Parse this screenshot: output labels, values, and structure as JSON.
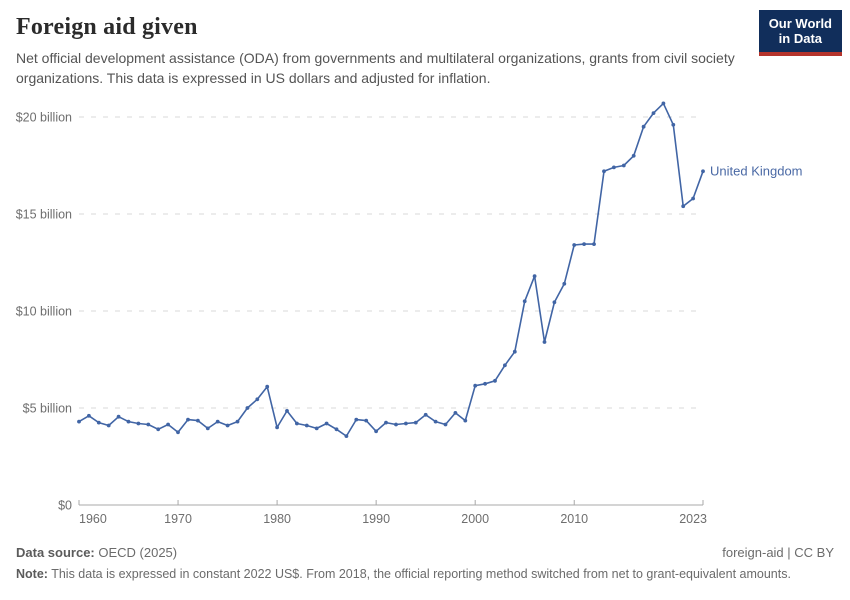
{
  "header": {
    "title": "Foreign aid given",
    "subtitle": "Net official development assistance (ODA) from governments and multilateral organizations, grants from civil society organizations. This data is expressed in US dollars and adjusted for inflation.",
    "logo": {
      "line1": "Our World",
      "line2": "in Data",
      "bg_color": "#112e5b",
      "bar_color": "#b5342c"
    }
  },
  "chart_data": {
    "type": "line",
    "title": "Foreign aid given",
    "xlabel": "",
    "ylabel": "",
    "unit": "US$ billion (constant 2022 prices)",
    "grid": "horizontal dashed",
    "legend_position": "end-of-line label",
    "xlim": [
      1960,
      2023
    ],
    "ylim": [
      0,
      20
    ],
    "x_ticks": [
      1960,
      1970,
      1980,
      1990,
      2000,
      2010,
      2023
    ],
    "y_ticks": [
      {
        "value": 0,
        "label": "$0"
      },
      {
        "value": 5,
        "label": "$5 billion"
      },
      {
        "value": 10,
        "label": "$10 billion"
      },
      {
        "value": 15,
        "label": "$15 billion"
      },
      {
        "value": 20,
        "label": "$20 billion"
      }
    ],
    "series": [
      {
        "name": "United Kingdom",
        "color": "#4165a5",
        "x": [
          1960,
          1961,
          1962,
          1963,
          1964,
          1965,
          1966,
          1967,
          1968,
          1969,
          1970,
          1971,
          1972,
          1973,
          1974,
          1975,
          1976,
          1977,
          1978,
          1979,
          1980,
          1981,
          1982,
          1983,
          1984,
          1985,
          1986,
          1987,
          1988,
          1989,
          1990,
          1991,
          1992,
          1993,
          1994,
          1995,
          1996,
          1997,
          1998,
          1999,
          2000,
          2001,
          2002,
          2003,
          2004,
          2005,
          2006,
          2007,
          2008,
          2009,
          2010,
          2011,
          2012,
          2013,
          2014,
          2015,
          2016,
          2017,
          2018,
          2019,
          2020,
          2021,
          2022,
          2023
        ],
        "values": [
          4.3,
          4.6,
          4.25,
          4.1,
          4.55,
          4.3,
          4.2,
          4.15,
          3.9,
          4.15,
          3.75,
          4.4,
          4.35,
          3.95,
          4.3,
          4.1,
          4.3,
          5.0,
          5.45,
          6.1,
          4.0,
          4.85,
          4.2,
          4.1,
          3.95,
          4.2,
          3.9,
          3.55,
          4.4,
          4.35,
          3.8,
          4.25,
          4.15,
          4.2,
          4.25,
          4.65,
          4.3,
          4.15,
          4.75,
          4.35,
          6.15,
          6.25,
          6.4,
          7.2,
          7.9,
          10.5,
          11.8,
          8.4,
          10.45,
          11.4,
          13.4,
          13.45,
          13.45,
          17.2,
          17.4,
          17.5,
          18.0,
          19.5,
          20.2,
          20.7,
          19.6,
          15.4,
          15.8,
          17.2
        ]
      }
    ]
  },
  "footer": {
    "source_label": "Data source:",
    "source_value": " OECD (2025)",
    "rights": "foreign-aid | CC BY",
    "note_label": "Note:",
    "note_value": " This data is expressed in constant 2022 US$. From 2018, the official reporting method switched from net to grant-equivalent amounts."
  }
}
